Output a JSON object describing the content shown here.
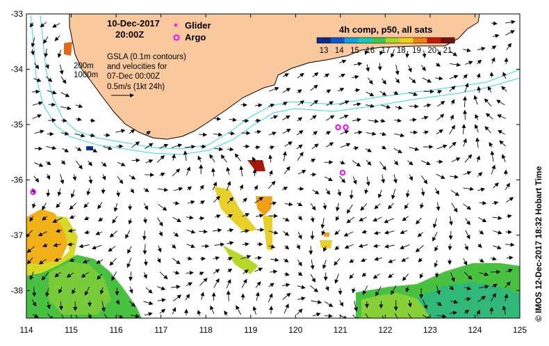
{
  "header": {
    "date": "10-Dec-2017",
    "time": "20:00Z"
  },
  "legend": {
    "glider_label": "Glider",
    "argo_label": "Argo",
    "glider_color": "#ff00ff",
    "argo_color": "#ff00ff"
  },
  "info": {
    "line1": "GSLA (0.1m contours)",
    "line2": "and velocities for",
    "line3": "07-Dec 00:00Z",
    "line4": "0.5m/s (1kt 24h)",
    "depth_200": "200m",
    "depth_1000": "1000m"
  },
  "colorbar": {
    "title": "4h comp, p50, all sats",
    "ticks": [
      "13",
      "14",
      "15",
      "16",
      "17",
      "18",
      "19",
      "20",
      "21"
    ],
    "colors": [
      "#0a2a8c",
      "#0b58c8",
      "#12a0e0",
      "#18c8b0",
      "#3cc850",
      "#a8d828",
      "#f0d018",
      "#f08010",
      "#c81808",
      "#781008"
    ]
  },
  "axes": {
    "x_ticks": [
      "114",
      "115",
      "116",
      "117",
      "118",
      "119",
      "120",
      "121",
      "122",
      "123",
      "124",
      "125"
    ],
    "y_ticks": [
      "-33",
      "-34",
      "-35",
      "-36",
      "-37",
      "-38"
    ],
    "x_range": [
      114,
      125
    ],
    "y_range": [
      -33,
      -38.5
    ]
  },
  "argo_floats": [
    {
      "lon": 120.95,
      "lat": -35.05
    },
    {
      "lon": 121.12,
      "lat": -35.05
    },
    {
      "lon": 121.05,
      "lat": -35.87
    },
    {
      "lon": 114.15,
      "lat": -36.22
    }
  ],
  "credit": "©  IMOS 12-Dec-2017 18:32 Hobart Time",
  "colors": {
    "land": "#f9c89d",
    "land_stroke": "#000000",
    "isobath": "#30d8e8"
  }
}
